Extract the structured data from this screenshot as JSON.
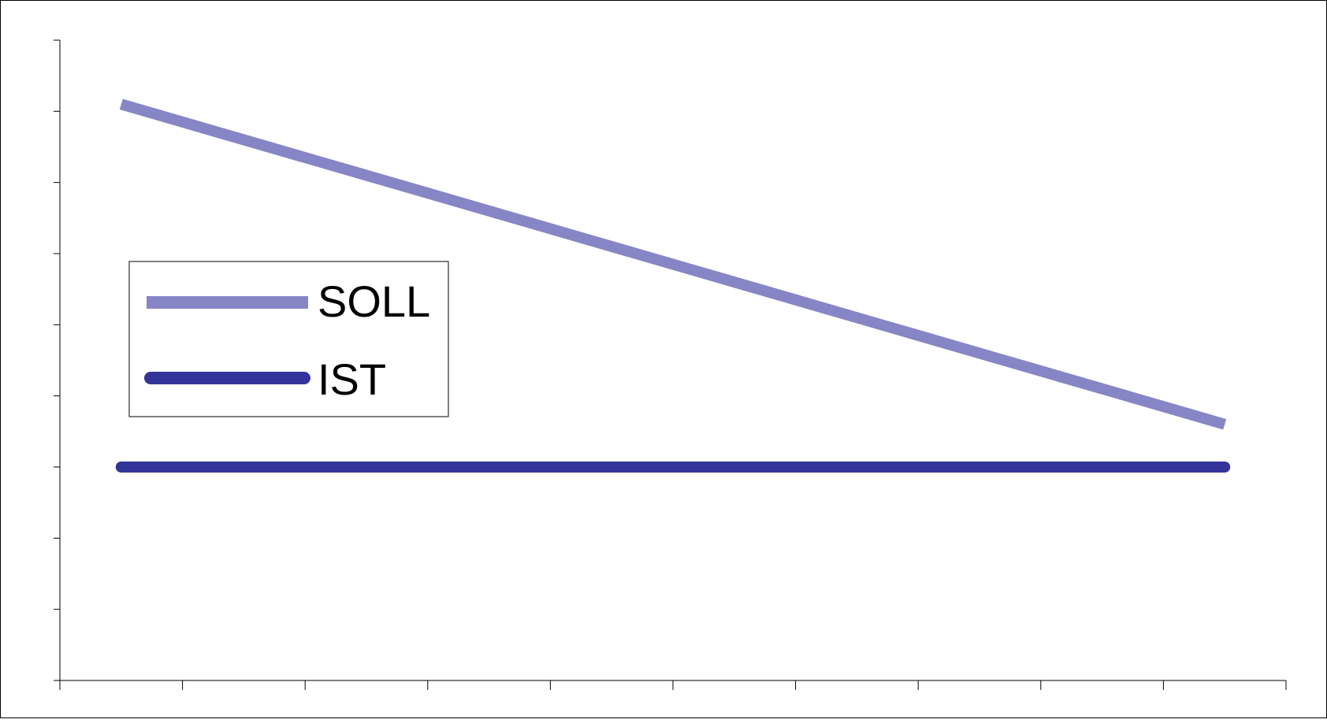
{
  "chart_data": {
    "type": "line",
    "title": "",
    "xlabel": "",
    "ylabel": "",
    "x": [
      1,
      2,
      3,
      4,
      5,
      6,
      7,
      8,
      9,
      10
    ],
    "x_tick_count": 11,
    "y_tick_count": 10,
    "ylim": [
      0,
      9
    ],
    "xlim": [
      0.5,
      10.5
    ],
    "grid": false,
    "legend_position": "left",
    "series": [
      {
        "name": "SOLL",
        "values": [
          8.1,
          7.6,
          7.1,
          6.6,
          6.1,
          5.6,
          5.1,
          4.6,
          4.1,
          3.6
        ],
        "color": "#8686c6",
        "style": "dashed-light"
      },
      {
        "name": "IST",
        "values": [
          3.0,
          3.0,
          3.0,
          3.0,
          3.0,
          3.0,
          3.0,
          3.0,
          3.0,
          3.0
        ],
        "color": "#333399",
        "style": "solid"
      }
    ]
  },
  "legend": {
    "soll_label": "SOLL",
    "ist_label": "IST"
  }
}
